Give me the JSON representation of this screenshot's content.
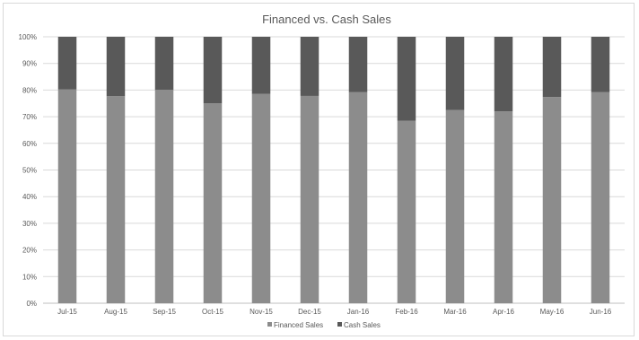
{
  "chart_data": {
    "type": "bar",
    "stacked": true,
    "title": "Financed vs. Cash Sales",
    "xlabel": "",
    "ylabel": "",
    "categories": [
      "Jul-15",
      "Aug-15",
      "Sep-15",
      "Oct-15",
      "Nov-15",
      "Dec-15",
      "Jan-16",
      "Feb-16",
      "Mar-16",
      "Apr-16",
      "May-16",
      "Jun-16"
    ],
    "series": [
      {
        "name": "Financed Sales",
        "color": "#8c8c8c",
        "values": [
          80.3,
          77.7,
          80.1,
          75.0,
          78.6,
          77.8,
          79.2,
          68.5,
          72.5,
          72.0,
          77.4,
          79.2
        ]
      },
      {
        "name": "Cash Sales",
        "color": "#595959",
        "values": [
          19.7,
          22.3,
          19.9,
          25.0,
          21.4,
          22.2,
          20.8,
          31.5,
          27.5,
          28.0,
          22.6,
          20.8
        ]
      }
    ],
    "ylim": [
      0,
      100
    ],
    "yticks": [
      "0%",
      "10%",
      "20%",
      "30%",
      "40%",
      "50%",
      "60%",
      "70%",
      "80%",
      "90%",
      "100%"
    ],
    "grid": true,
    "legend_position": "bottom"
  }
}
